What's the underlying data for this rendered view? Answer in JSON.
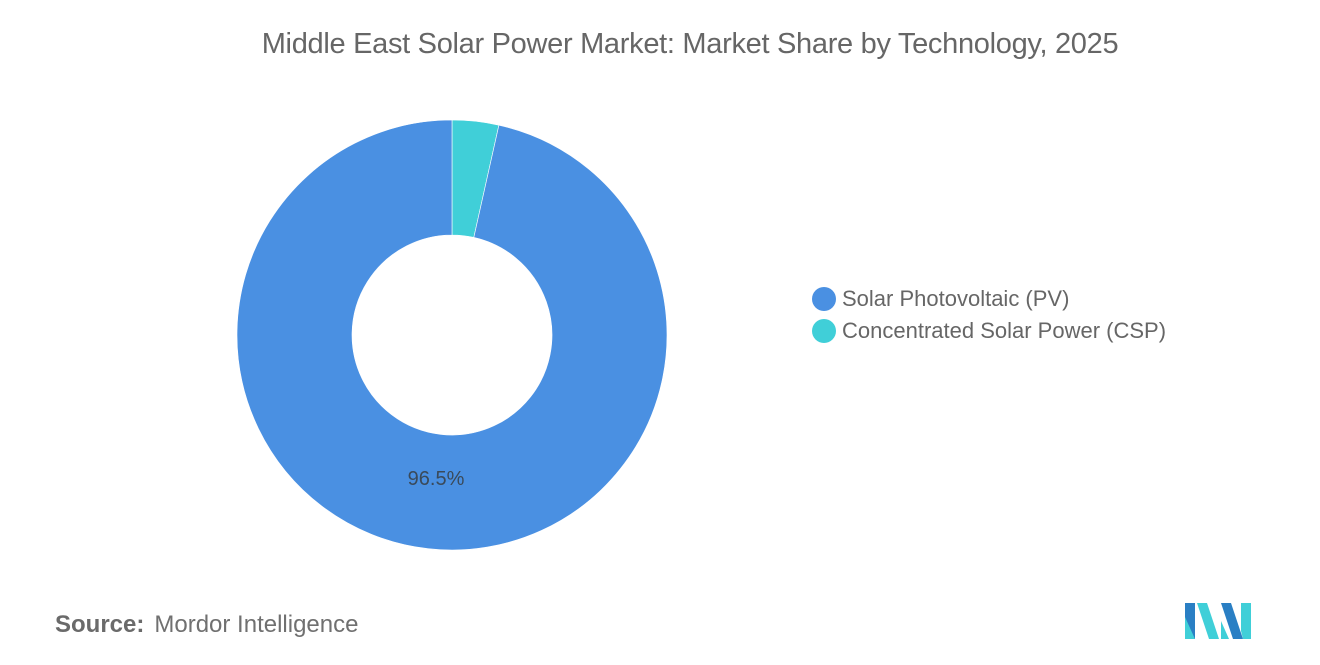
{
  "title": "Middle East Solar Power Market: Market Share by Technology, 2025",
  "legend": {
    "items": [
      {
        "label": "Solar Photovoltaic (PV)",
        "color": "#4a90e2"
      },
      {
        "label": "Concentrated Solar Power (CSP)",
        "color": "#40cfd8"
      }
    ]
  },
  "data_label": "96.5%",
  "source": {
    "key": "Source:",
    "value": "Mordor Intelligence"
  },
  "logo": {
    "name": "Mordor Intelligence logo",
    "colors": [
      "#2a7fc4",
      "#40cfd8"
    ]
  },
  "chart_data": {
    "type": "pie",
    "variant": "donut",
    "title": "Middle East Solar Power Market: Market Share by Technology, 2025",
    "categories": [
      "Solar Photovoltaic (PV)",
      "Concentrated Solar Power (CSP)"
    ],
    "values": [
      96.5,
      3.5
    ],
    "unit": "%",
    "colors": [
      "#4a90e2",
      "#40cfd8"
    ],
    "data_labels": [
      "96.5%",
      ""
    ],
    "legend_position": "right",
    "start_angle": "12 o'clock, clockwise, CSP first",
    "source": "Mordor Intelligence"
  }
}
